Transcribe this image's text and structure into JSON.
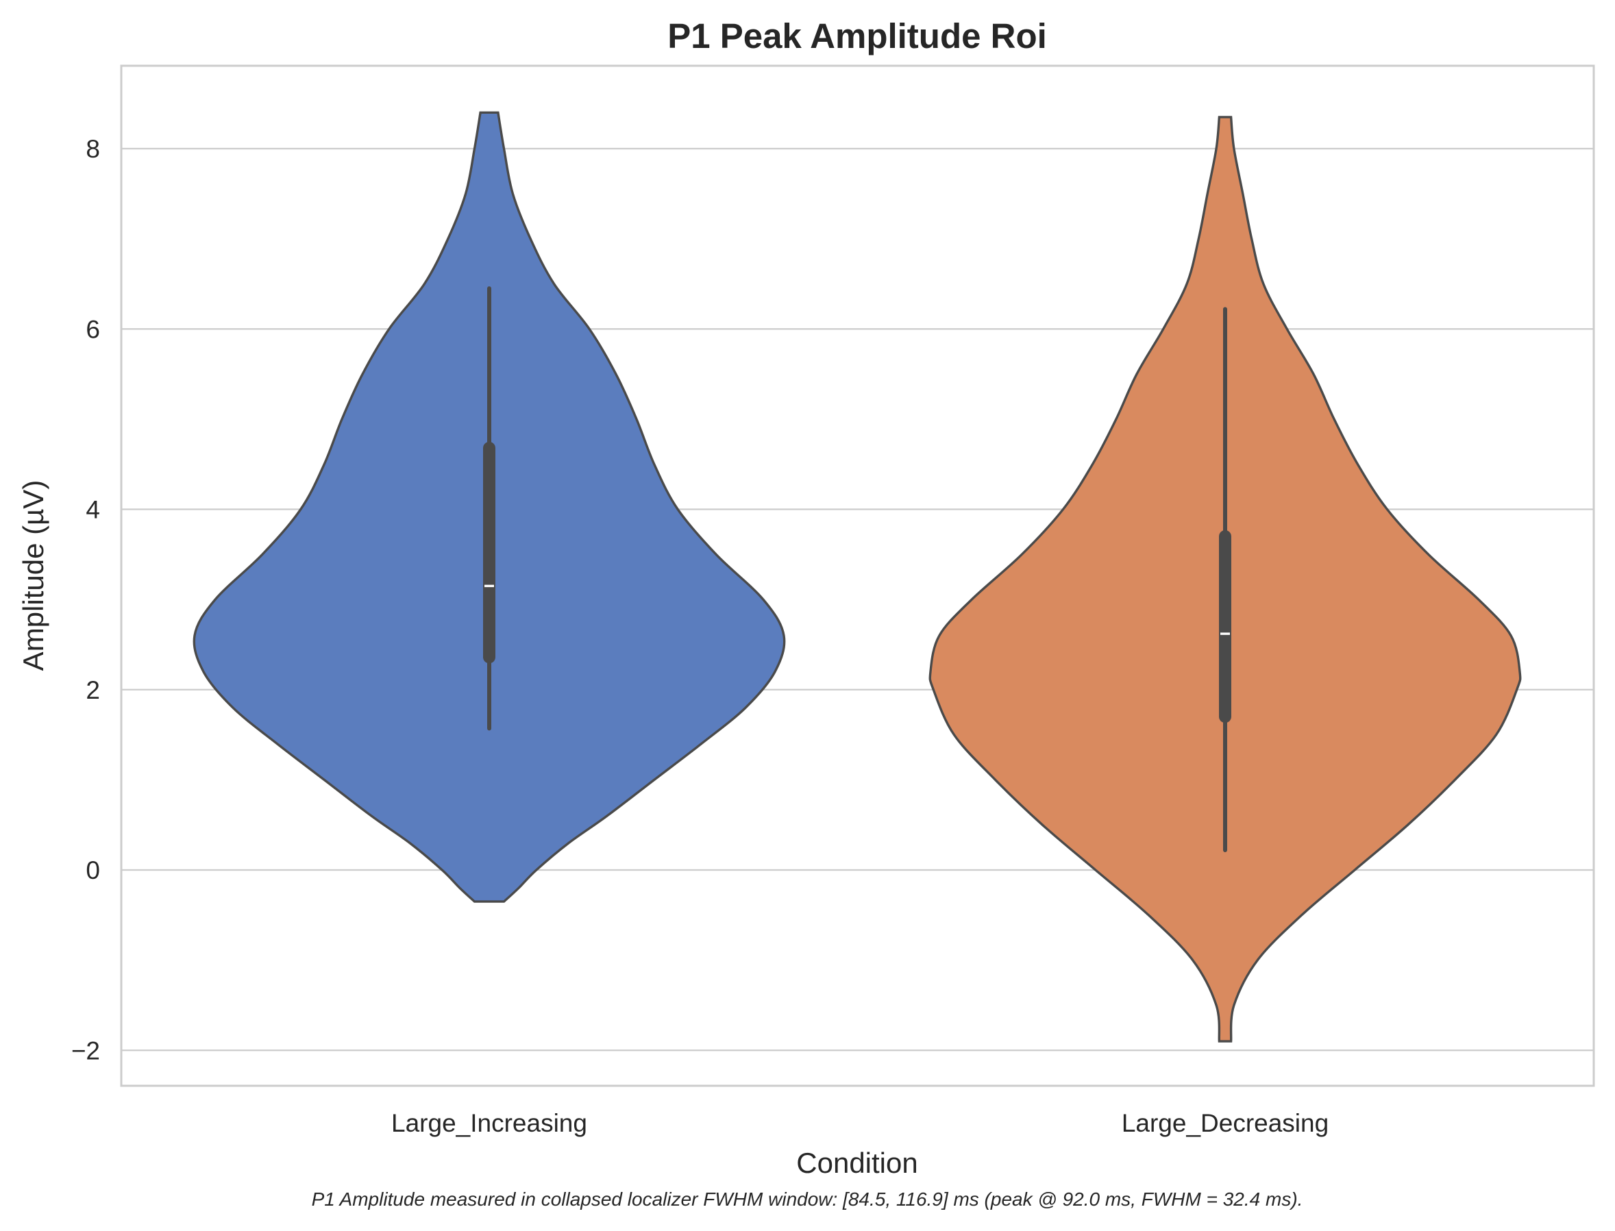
{
  "chart_data": {
    "type": "violin",
    "title": "P1 Peak Amplitude Roi",
    "xlabel": "Condition",
    "ylabel": "Amplitude (µV)",
    "ylim": [
      -2.4,
      8.9
    ],
    "yticks": [
      -2,
      0,
      2,
      4,
      6,
      8
    ],
    "ytick_labels": [
      "−2",
      "0",
      "2",
      "4",
      "6",
      "8"
    ],
    "grid": "horizontal",
    "categories": [
      "Large_Increasing",
      "Large_Decreasing"
    ],
    "footnote": "P1 Amplitude measured in collapsed localizer FWHM window: [84.5, 116.9] ms (peak @ 92.0 ms, FWHM = 32.4 ms).",
    "series": [
      {
        "category": "Large_Increasing",
        "color": "#5b7dbe",
        "min": -0.35,
        "max": 8.4,
        "whisker_low": 1.57,
        "whisker_high": 6.45,
        "q1": 2.36,
        "median": 3.15,
        "q3": 4.68,
        "density": [
          [
            -0.35,
            0.05
          ],
          [
            -0.2,
            0.1
          ],
          [
            0.0,
            0.16
          ],
          [
            0.3,
            0.27
          ],
          [
            0.6,
            0.4
          ],
          [
            1.0,
            0.56
          ],
          [
            1.4,
            0.72
          ],
          [
            1.8,
            0.87
          ],
          [
            2.2,
            0.97
          ],
          [
            2.6,
            1.0
          ],
          [
            3.0,
            0.93
          ],
          [
            3.5,
            0.77
          ],
          [
            4.0,
            0.64
          ],
          [
            4.5,
            0.56
          ],
          [
            5.0,
            0.5
          ],
          [
            5.5,
            0.43
          ],
          [
            6.0,
            0.34
          ],
          [
            6.5,
            0.22
          ],
          [
            7.0,
            0.14
          ],
          [
            7.5,
            0.08
          ],
          [
            8.0,
            0.05
          ],
          [
            8.4,
            0.03
          ]
        ]
      },
      {
        "category": "Large_Decreasing",
        "color": "#d98a5f",
        "min": -1.9,
        "max": 8.35,
        "whisker_low": 0.22,
        "whisker_high": 6.22,
        "q1": 1.7,
        "median": 2.62,
        "q3": 3.7,
        "density": [
          [
            -1.9,
            0.02
          ],
          [
            -1.5,
            0.03
          ],
          [
            -1.0,
            0.11
          ],
          [
            -0.5,
            0.26
          ],
          [
            0.0,
            0.44
          ],
          [
            0.5,
            0.62
          ],
          [
            1.0,
            0.78
          ],
          [
            1.5,
            0.92
          ],
          [
            2.0,
            0.99
          ],
          [
            2.2,
            1.0
          ],
          [
            2.6,
            0.97
          ],
          [
            3.0,
            0.86
          ],
          [
            3.5,
            0.69
          ],
          [
            4.0,
            0.55
          ],
          [
            4.5,
            0.45
          ],
          [
            5.0,
            0.37
          ],
          [
            5.5,
            0.3
          ],
          [
            6.0,
            0.21
          ],
          [
            6.5,
            0.13
          ],
          [
            7.0,
            0.09
          ],
          [
            7.5,
            0.06
          ],
          [
            8.0,
            0.03
          ],
          [
            8.35,
            0.02
          ]
        ]
      }
    ]
  }
}
